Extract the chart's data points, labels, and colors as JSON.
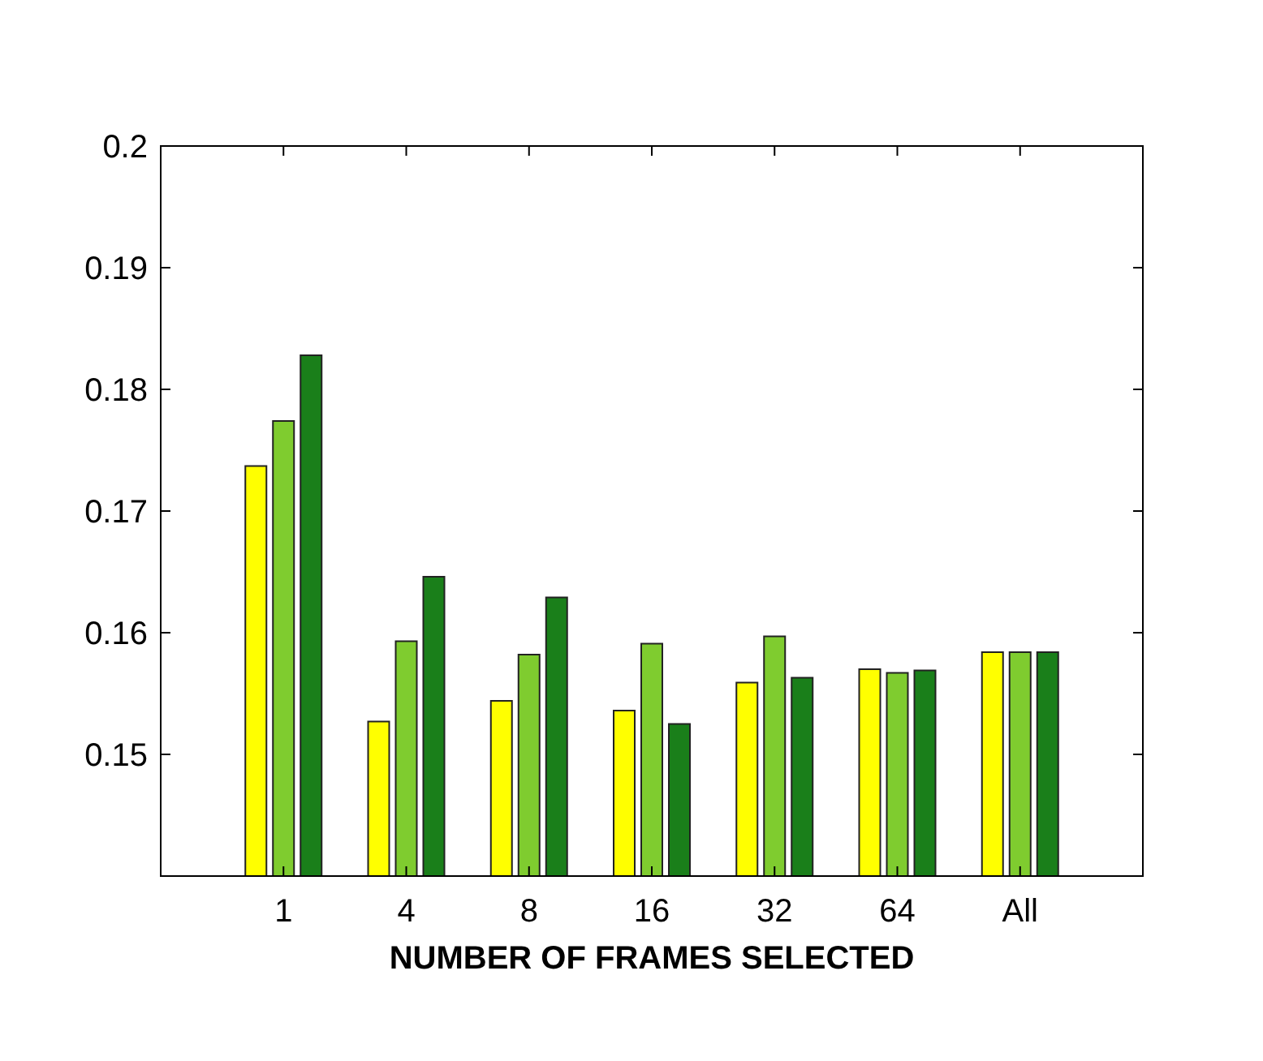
{
  "chart_data": {
    "type": "bar",
    "xlabel": "NUMBER OF FRAMES SELECTED",
    "categories": [
      "1",
      "4",
      "8",
      "16",
      "32",
      "64",
      "All"
    ],
    "series": [
      {
        "color": "#ffff00",
        "values": [
          0.1737,
          0.1527,
          0.1544,
          0.1536,
          0.1559,
          0.157,
          0.1584
        ]
      },
      {
        "color": "#7fcc2f",
        "values": [
          0.1774,
          0.1593,
          0.1582,
          0.1591,
          0.1597,
          0.1567,
          0.1584
        ]
      },
      {
        "color": "#1a7f1a",
        "values": [
          0.1828,
          0.1646,
          0.1629,
          0.1525,
          0.1563,
          0.1569,
          0.1584
        ]
      }
    ],
    "ylim": [
      0.14,
      0.2
    ],
    "yticks": [
      0.15,
      0.16,
      0.17,
      0.18,
      0.19,
      0.2
    ],
    "grid": false
  }
}
